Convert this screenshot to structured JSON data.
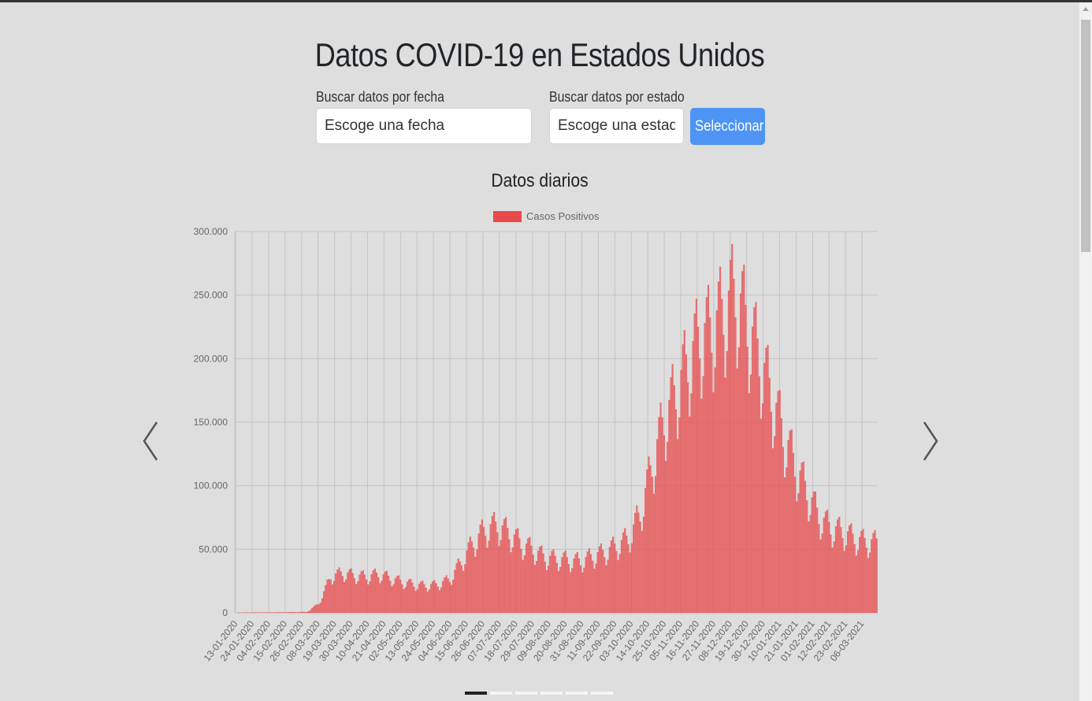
{
  "page_title": "Datos COVID-19 en Estados Unidos",
  "search": {
    "date_label": "Buscar datos por fecha",
    "date_placeholder": "Escoge una fecha",
    "state_label": "Buscar datos por estado",
    "state_placeholder": "Escoge una estado",
    "submit_label": "Seleccionar"
  },
  "carousel": {
    "prev_icon": "chevron-left-icon",
    "next_icon": "chevron-right-icon",
    "slide_count": 6,
    "active_slide": 0
  },
  "chart_data": {
    "type": "bar",
    "title": "Datos diarios",
    "legend_position": "top",
    "ylim": [
      0,
      300000
    ],
    "y_ticks": [
      "0",
      "50.000",
      "100.000",
      "150.000",
      "200.000",
      "250.000",
      "300.000"
    ],
    "grid": true,
    "x_tick_labels": [
      "13-01-2020",
      "24-01-2020",
      "04-02-2020",
      "15-02-2020",
      "26-02-2020",
      "08-03-2020",
      "19-03-2020",
      "30-03-2020",
      "10-04-2020",
      "21-04-2020",
      "02-05-2020",
      "13-05-2020",
      "24-05-2020",
      "04-06-2020",
      "15-06-2020",
      "26-06-2020",
      "07-07-2020",
      "18-07-2020",
      "29-07-2020",
      "09-08-2020",
      "20-08-2020",
      "31-08-2020",
      "11-09-2020",
      "22-09-2020",
      "03-10-2020",
      "14-10-2020",
      "25-10-2020",
      "05-11-2020",
      "16-11-2020",
      "27-11-2020",
      "08-12-2020",
      "19-12-2020",
      "30-12-2020",
      "10-01-2021",
      "21-01-2021",
      "01-02-2021",
      "12-02-2021",
      "23-02-2021",
      "06-03-2021"
    ],
    "series": [
      {
        "name": "Casos Positivos",
        "color": "#e8494b",
        "weekly_values": [
          0,
          100,
          100,
          200,
          300,
          400,
          600,
          7000,
          28000,
          31000,
          29000,
          28000,
          30000,
          27000,
          24000,
          22000,
          21000,
          22000,
          26000,
          40000,
          55000,
          65000,
          68000,
          62000,
          54000,
          49000,
          43000,
          42000,
          41000,
          40000,
          44000,
          47000,
          52000,
          58000,
          77000,
          115000,
          150000,
          172000,
          195000,
          215000,
          220000,
          235000,
          250000,
          225000,
          200000,
          170000,
          140000,
          115000,
          95000,
          75000,
          66000,
          63000,
          58000,
          55000
        ]
      }
    ]
  }
}
